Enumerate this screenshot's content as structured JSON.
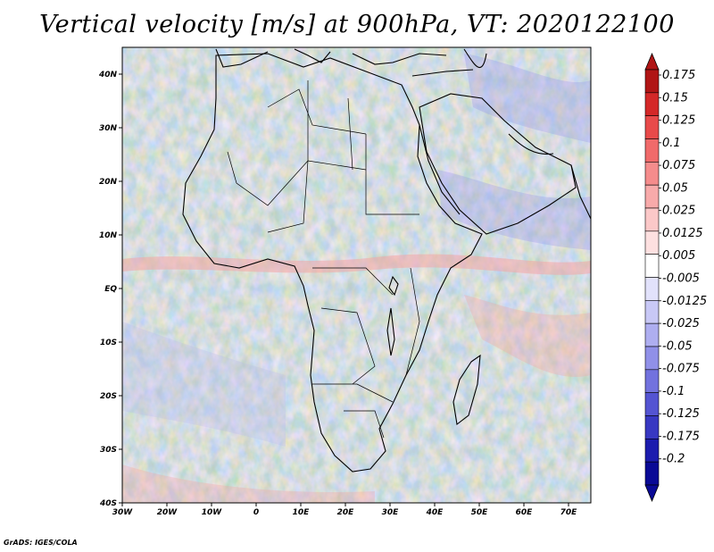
{
  "title": "Vertical velocity [m/s] at 900hPa, VT: 2020122100",
  "credit": "GrADS: IGES/COLA",
  "map": {
    "lon_range": [
      -30,
      75
    ],
    "lat_range": [
      -40,
      45
    ],
    "lon_ticks": [
      "30W",
      "20W",
      "10W",
      "0",
      "10E",
      "20E",
      "30E",
      "40E",
      "50E",
      "60E",
      "70E"
    ],
    "lat_ticks": [
      "40N",
      "30N",
      "20N",
      "10N",
      "EQ",
      "10S",
      "20S",
      "30S",
      "40S"
    ]
  },
  "colorbar": {
    "labels": [
      "0.175",
      "0.15",
      "0.125",
      "0.1",
      "0.075",
      "0.05",
      "0.025",
      "0.0125",
      "0.005",
      "-0.005",
      "-0.0125",
      "-0.025",
      "-0.05",
      "-0.075",
      "-0.1",
      "-0.125",
      "-0.175",
      "-0.2"
    ],
    "colors": [
      "#b01515",
      "#d42828",
      "#e84a4a",
      "#f06a6a",
      "#f58c8c",
      "#f8aaaa",
      "#fbc8c8",
      "#fde0e0",
      "#ffffff",
      "#e2e2fb",
      "#c8c8f6",
      "#aeaef0",
      "#9090e8",
      "#7272de",
      "#5454d2",
      "#3838c2",
      "#1c1cae",
      "#0a0a96"
    ]
  }
}
